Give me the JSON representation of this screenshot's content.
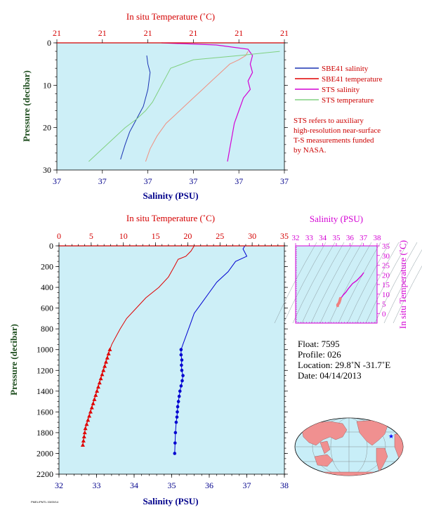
{
  "chart_data": [
    {
      "id": "top",
      "type": "line",
      "title_top_axis": "In situ Temperature (˚C)",
      "xlabel": "Salinity (PSU)",
      "ylabel": "Pressure (decibar)",
      "top_tick_labels": [
        "21",
        "21",
        "21",
        "21",
        "21",
        "21"
      ],
      "bottom_tick_labels": [
        "37",
        "37",
        "37",
        "37",
        "37",
        "37"
      ],
      "y_tick_labels": [
        "0",
        "10",
        "20",
        "30"
      ],
      "ylim": [
        0,
        30
      ],
      "x_fraction_axis": [
        0,
        1
      ],
      "series": [
        {
          "name": "SBE41 salinity",
          "color": "#1a33b3",
          "x": [
            0.395,
            0.4,
            0.41,
            0.405,
            0.4,
            0.39,
            0.38,
            0.36,
            0.34,
            0.32,
            0.3,
            0.28
          ],
          "y": [
            3,
            5,
            7,
            9,
            11,
            13,
            15,
            17,
            19,
            21,
            24,
            27.5
          ]
        },
        {
          "name": "SBE41 temperature",
          "color": "#f09080",
          "x": [
            0.84,
            0.83,
            0.8,
            0.76,
            0.72,
            0.68,
            0.64,
            0.6,
            0.56,
            0.52,
            0.48,
            0.44,
            0.41,
            0.39
          ],
          "y": [
            2,
            3,
            4,
            5,
            7,
            9,
            11,
            13,
            15,
            17,
            19,
            22,
            25,
            28
          ]
        },
        {
          "name": "STS salinity",
          "color": "#d400d4",
          "x": [
            0.46,
            0.7,
            0.84,
            0.86,
            0.85,
            0.86,
            0.84,
            0.85,
            0.82,
            0.8,
            0.78,
            0.77,
            0.76,
            0.75
          ],
          "y": [
            0,
            0.5,
            1.5,
            3,
            5,
            7,
            9,
            11,
            13,
            16,
            19,
            22,
            25,
            28
          ]
        },
        {
          "name": "STS temperature",
          "color": "#80d080",
          "x": [
            0.98,
            0.8,
            0.6,
            0.5,
            0.48,
            0.46,
            0.44,
            0.42,
            0.39,
            0.35,
            0.3,
            0.24,
            0.18,
            0.14
          ],
          "y": [
            2,
            3,
            4,
            6,
            8,
            10,
            12,
            14,
            16,
            18,
            20,
            23,
            26,
            28
          ]
        }
      ],
      "legend_placement": "right"
    },
    {
      "id": "bottom",
      "type": "line",
      "title_top_axis": "In situ Temperature (˚C)",
      "xlabel": "Salinity (PSU)",
      "ylabel": "Pressure (decibar)",
      "xlim_temperature": [
        0,
        35
      ],
      "xlim_salinity": [
        32,
        38
      ],
      "ylim": [
        0,
        2200
      ],
      "top_tick_labels": [
        "0",
        "5",
        "10",
        "15",
        "20",
        "25",
        "30",
        "35"
      ],
      "bottom_tick_labels": [
        "32",
        "33",
        "34",
        "35",
        "36",
        "37",
        "38"
      ],
      "y_tick_labels": [
        "0",
        "200",
        "400",
        "600",
        "800",
        "1000",
        "1200",
        "1400",
        "1600",
        "1800",
        "2000",
        "2200"
      ],
      "series": [
        {
          "name": "Temperature",
          "color": "#e00000",
          "marker": "triangle",
          "x": [
            21.0,
            20.5,
            19.7,
            18.5,
            17.9,
            17.0,
            15.5,
            13.5,
            12.0,
            10.5,
            9.5,
            8.8,
            8.2,
            7.9,
            7.7,
            7.5,
            7.3,
            7.1,
            6.9,
            6.7,
            6.5,
            6.3,
            6.1,
            5.9,
            5.7,
            5.5,
            5.3,
            5.1,
            4.9,
            4.7,
            4.5,
            4.3,
            4.1,
            4.0,
            3.9,
            3.8,
            3.7
          ],
          "y": [
            0,
            50,
            100,
            130,
            200,
            300,
            400,
            500,
            600,
            700,
            800,
            880,
            950,
            1000,
            1040,
            1080,
            1120,
            1160,
            1200,
            1240,
            1280,
            1320,
            1360,
            1400,
            1440,
            1480,
            1520,
            1560,
            1600,
            1640,
            1680,
            1720,
            1760,
            1800,
            1840,
            1880,
            1920
          ]
        },
        {
          "name": "Salinity",
          "color": "#0000d0",
          "marker": "circle",
          "x": [
            36.95,
            36.9,
            37.0,
            36.7,
            36.5,
            36.2,
            36.0,
            35.8,
            35.6,
            35.5,
            35.4,
            35.3,
            35.25,
            35.25,
            35.27,
            35.26,
            35.27,
            35.3,
            35.28,
            35.25,
            35.22,
            35.2,
            35.18,
            35.16,
            35.15,
            35.14,
            35.12,
            35.1,
            35.09,
            35.08
          ],
          "y": [
            0,
            30,
            100,
            150,
            250,
            350,
            450,
            550,
            650,
            750,
            850,
            950,
            1000,
            1050,
            1100,
            1150,
            1200,
            1250,
            1300,
            1350,
            1400,
            1450,
            1500,
            1550,
            1600,
            1650,
            1700,
            1800,
            1900,
            2000
          ]
        }
      ]
    },
    {
      "id": "ts",
      "type": "line",
      "title_top_axis": "Salinity (PSU)",
      "ylabel": "In situ Temperature (˚C)",
      "xlim": [
        32,
        38
      ],
      "ylim": [
        -5,
        35
      ],
      "top_tick_labels": [
        "32",
        "33",
        "34",
        "35",
        "36",
        "37",
        "38"
      ],
      "y_tick_labels": [
        "0",
        "5",
        "10",
        "15",
        "20",
        "25",
        "30",
        "35"
      ],
      "series": [
        {
          "name": "T-S",
          "color": "#d400d4",
          "x": [
            37.0,
            36.9,
            36.5,
            36.2,
            35.9,
            35.7,
            35.5,
            35.4,
            35.3,
            35.25
          ],
          "y": [
            21,
            20,
            17,
            15.5,
            13,
            11,
            9.5,
            8.5,
            7.5,
            6.5
          ]
        },
        {
          "name": "T-S deep",
          "color": "#f08080",
          "x": [
            35.3,
            35.25,
            35.2,
            35.15,
            35.1,
            35.1
          ],
          "y": [
            7.8,
            6.5,
            5.5,
            5.0,
            4.5,
            4.0
          ]
        }
      ]
    }
  ],
  "legend": [
    {
      "label": "SBE41 salinity",
      "color": "#1a33b3"
    },
    {
      "label": "SBE41 temperature",
      "color": "#e00000"
    },
    {
      "label": "STS salinity",
      "color": "#d400d4"
    },
    {
      "label": "STS temperature",
      "color": "#80d080"
    }
  ],
  "note_lines": [
    "STS refers to auxiliary",
    "high-resolution near-surface",
    "T-S measurements funded",
    "by NASA."
  ],
  "info": {
    "float": "Float:  7595",
    "profile": "Profile:  026",
    "location": "Location:  29.8˚N  -31.7˚E",
    "date": "Date:  04/14/2013"
  },
  "footer_text": "PMEL/PMTL 03/09/14",
  "colors": {
    "plot_background": "#cdeff7",
    "axis_red": "#d40000",
    "axis_blue": "#00008b",
    "axis_magenta": "#d400d4",
    "ylabel_green": "#1d4d1d",
    "map_land": "#f09090",
    "map_ocean": "#c8eef8",
    "float_star": "#0000ff"
  }
}
